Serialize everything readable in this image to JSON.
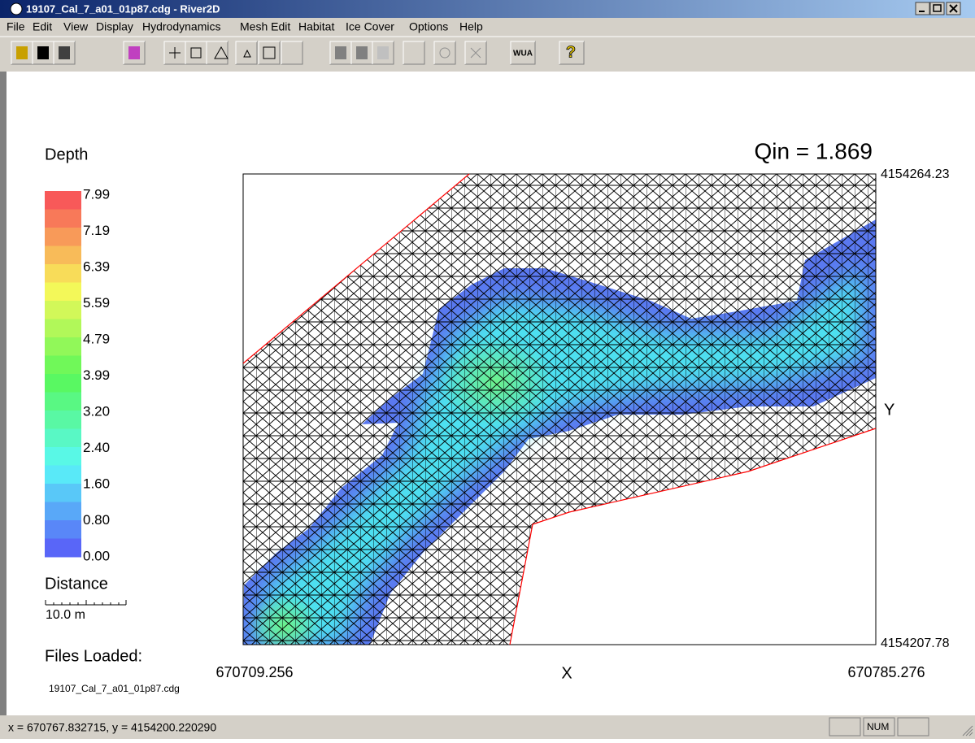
{
  "window": {
    "title": "19107_Cal_7_a01_01p87.cdg - River2D"
  },
  "menu": [
    "File",
    "Edit",
    "View",
    "Display",
    "Hydrodynamics",
    "Mesh Edit",
    "Habitat",
    "Ice Cover",
    "Options",
    "Help"
  ],
  "toolbar": {
    "wua": "WUA",
    "help": "?"
  },
  "legend": {
    "title": "Depth",
    "labels": [
      "7.99",
      "7.19",
      "6.39",
      "5.59",
      "4.79",
      "3.99",
      "3.20",
      "2.40",
      "1.60",
      "0.80",
      "0.00"
    ],
    "distance_title": "Distance",
    "scale": "10.0 m",
    "files_title": "Files Loaded:",
    "file": "19107_Cal_7_a01_01p87.cdg"
  },
  "plot": {
    "qin": "Qin = 1.869",
    "y_max": "4154264.23",
    "y_min": "4154207.78",
    "y_label": "Y",
    "x_min": "670709.256",
    "x_max": "670785.276",
    "x_label": "X"
  },
  "status": {
    "coords": "x = 670767.832715, y = 4154200.220290",
    "num": "NUM"
  }
}
